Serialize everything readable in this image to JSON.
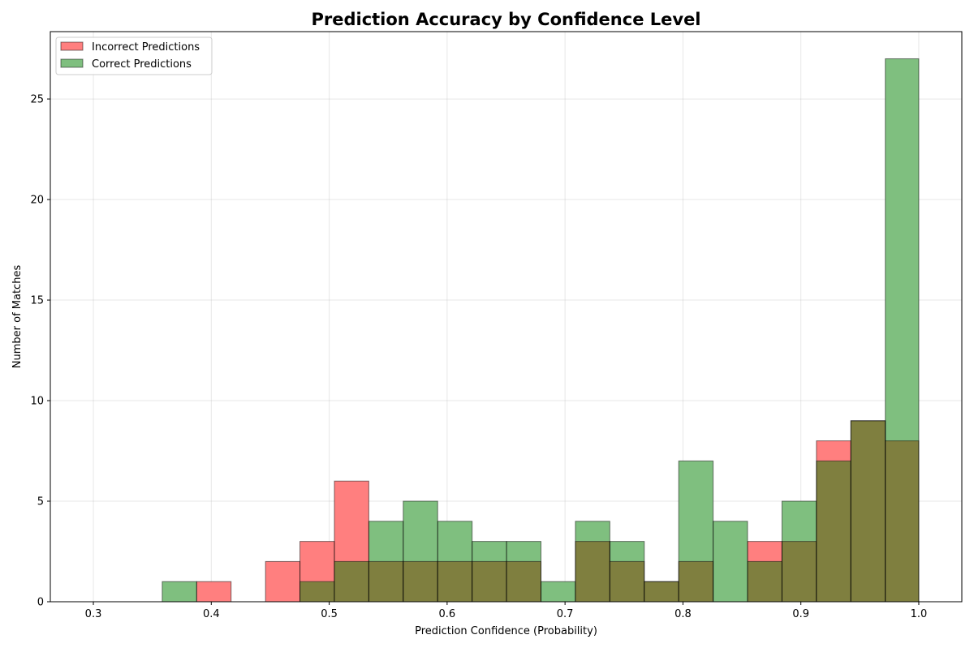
{
  "chart_data": {
    "type": "bar",
    "title": "Prediction Accuracy by Confidence Level",
    "xlabel": "Prediction Confidence (Probability)",
    "ylabel": "Number of Matches",
    "xlim": [
      0.2635,
      1.0365
    ],
    "ylim": [
      0,
      28.35
    ],
    "xticks": [
      0.3,
      0.4,
      0.5,
      0.6,
      0.7,
      0.8,
      0.9,
      1.0
    ],
    "xtick_labels": [
      "0.3",
      "0.4",
      "0.5",
      "0.6",
      "0.7",
      "0.8",
      "0.9",
      "1.0"
    ],
    "yticks": [
      0,
      5,
      10,
      15,
      20,
      25
    ],
    "ytick_labels": [
      "0",
      "5",
      "10",
      "15",
      "20",
      "25"
    ],
    "grid": true,
    "legend_position": "top-left",
    "bin_edges": [
      0.3,
      0.3292,
      0.3584,
      0.3876,
      0.4168,
      0.446,
      0.4752,
      0.5044,
      0.5336,
      0.5628,
      0.592,
      0.6212,
      0.6504,
      0.6796,
      0.7088,
      0.738,
      0.7672,
      0.7964,
      0.8256,
      0.8548,
      0.884,
      0.9132,
      0.9424,
      0.9716,
      1.0
    ],
    "series": [
      {
        "name": "Incorrect Predictions",
        "color": "#ff7f7f",
        "values": [
          0,
          0,
          0,
          1,
          0,
          2,
          3,
          6,
          2,
          2,
          2,
          2,
          2,
          0,
          3,
          2,
          1,
          2,
          0,
          3,
          3,
          8,
          9,
          8
        ]
      },
      {
        "name": "Correct Predictions",
        "color": "#7fbf7f",
        "values": [
          0,
          0,
          1,
          0,
          0,
          0,
          1,
          2,
          4,
          5,
          4,
          3,
          3,
          1,
          4,
          3,
          1,
          7,
          4,
          2,
          5,
          7,
          9,
          27
        ]
      }
    ],
    "overlap_color": "#7f7f3f"
  }
}
